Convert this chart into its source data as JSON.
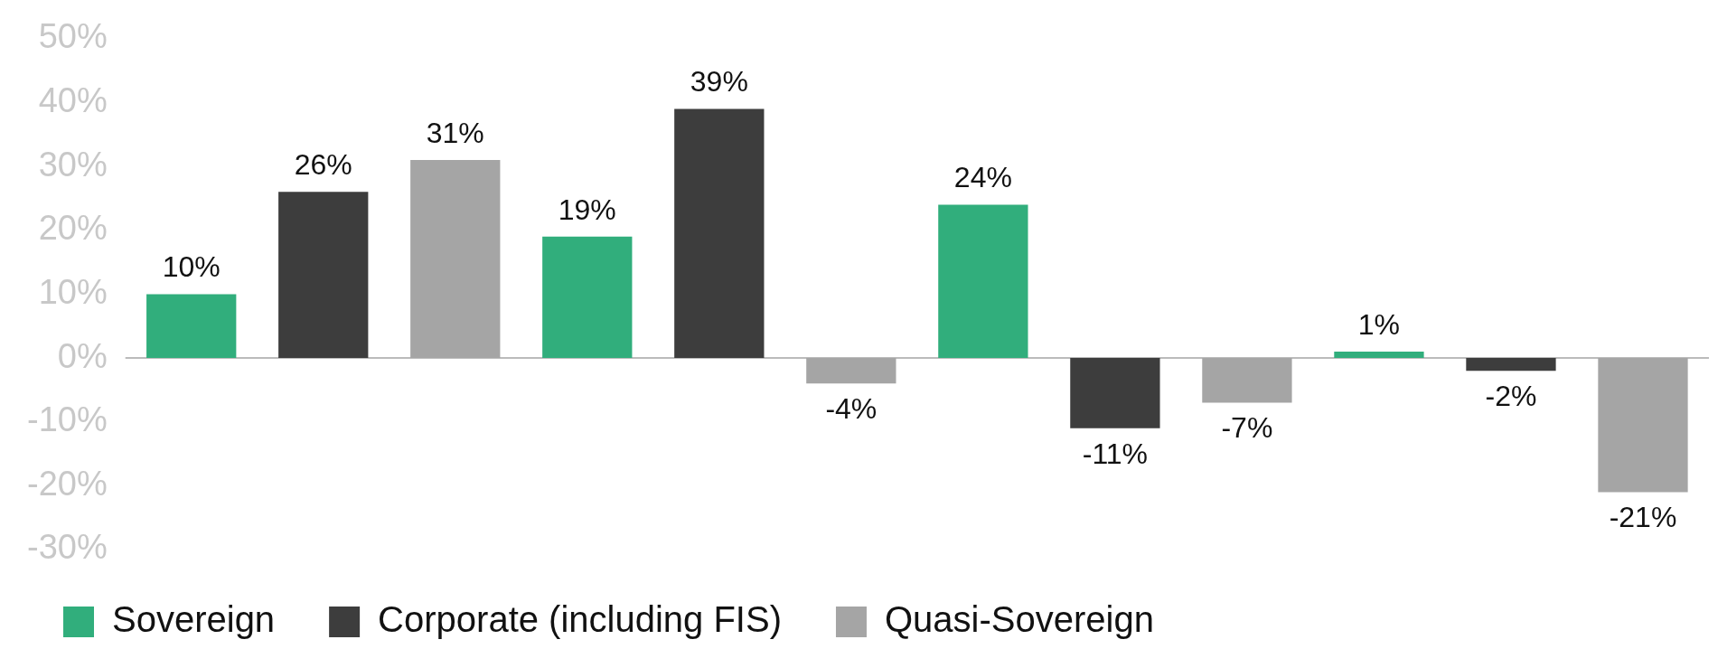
{
  "chart_data": {
    "type": "bar",
    "categories": [
      null,
      null,
      null,
      null
    ],
    "series": [
      {
        "name": "Sovereign",
        "color": "#31ae7c",
        "values": [
          10,
          19,
          24,
          1
        ],
        "value_labels": [
          "10%",
          "19%",
          "24%",
          "1%"
        ]
      },
      {
        "name": "Corporate (including FIS)",
        "color": "#3d3d3d",
        "values": [
          26,
          39,
          -11,
          -2
        ],
        "value_labels": [
          "26%",
          "39%",
          "-11%",
          "-2%"
        ]
      },
      {
        "name": "Quasi-Sovereign",
        "color": "#a5a5a5",
        "values": [
          31,
          -4,
          -7,
          -21
        ],
        "value_labels": [
          "31%",
          "-4%",
          "-7%",
          "-21%"
        ]
      }
    ],
    "ylim": [
      -30,
      50
    ],
    "yticks": [
      {
        "value": -30,
        "label": "-30%"
      },
      {
        "value": -20,
        "label": "-20%"
      },
      {
        "value": -10,
        "label": "-10%"
      },
      {
        "value": 0,
        "label": "0%"
      },
      {
        "value": 10,
        "label": "10%"
      },
      {
        "value": 20,
        "label": "20%"
      },
      {
        "value": 30,
        "label": "30%"
      },
      {
        "value": 40,
        "label": "40%"
      },
      {
        "value": 50,
        "label": "50%"
      }
    ],
    "grid": false,
    "ref_lines": [
      {
        "axis": "y",
        "value": 0,
        "color": "#bbbbbb"
      }
    ],
    "legend": "bottom"
  }
}
